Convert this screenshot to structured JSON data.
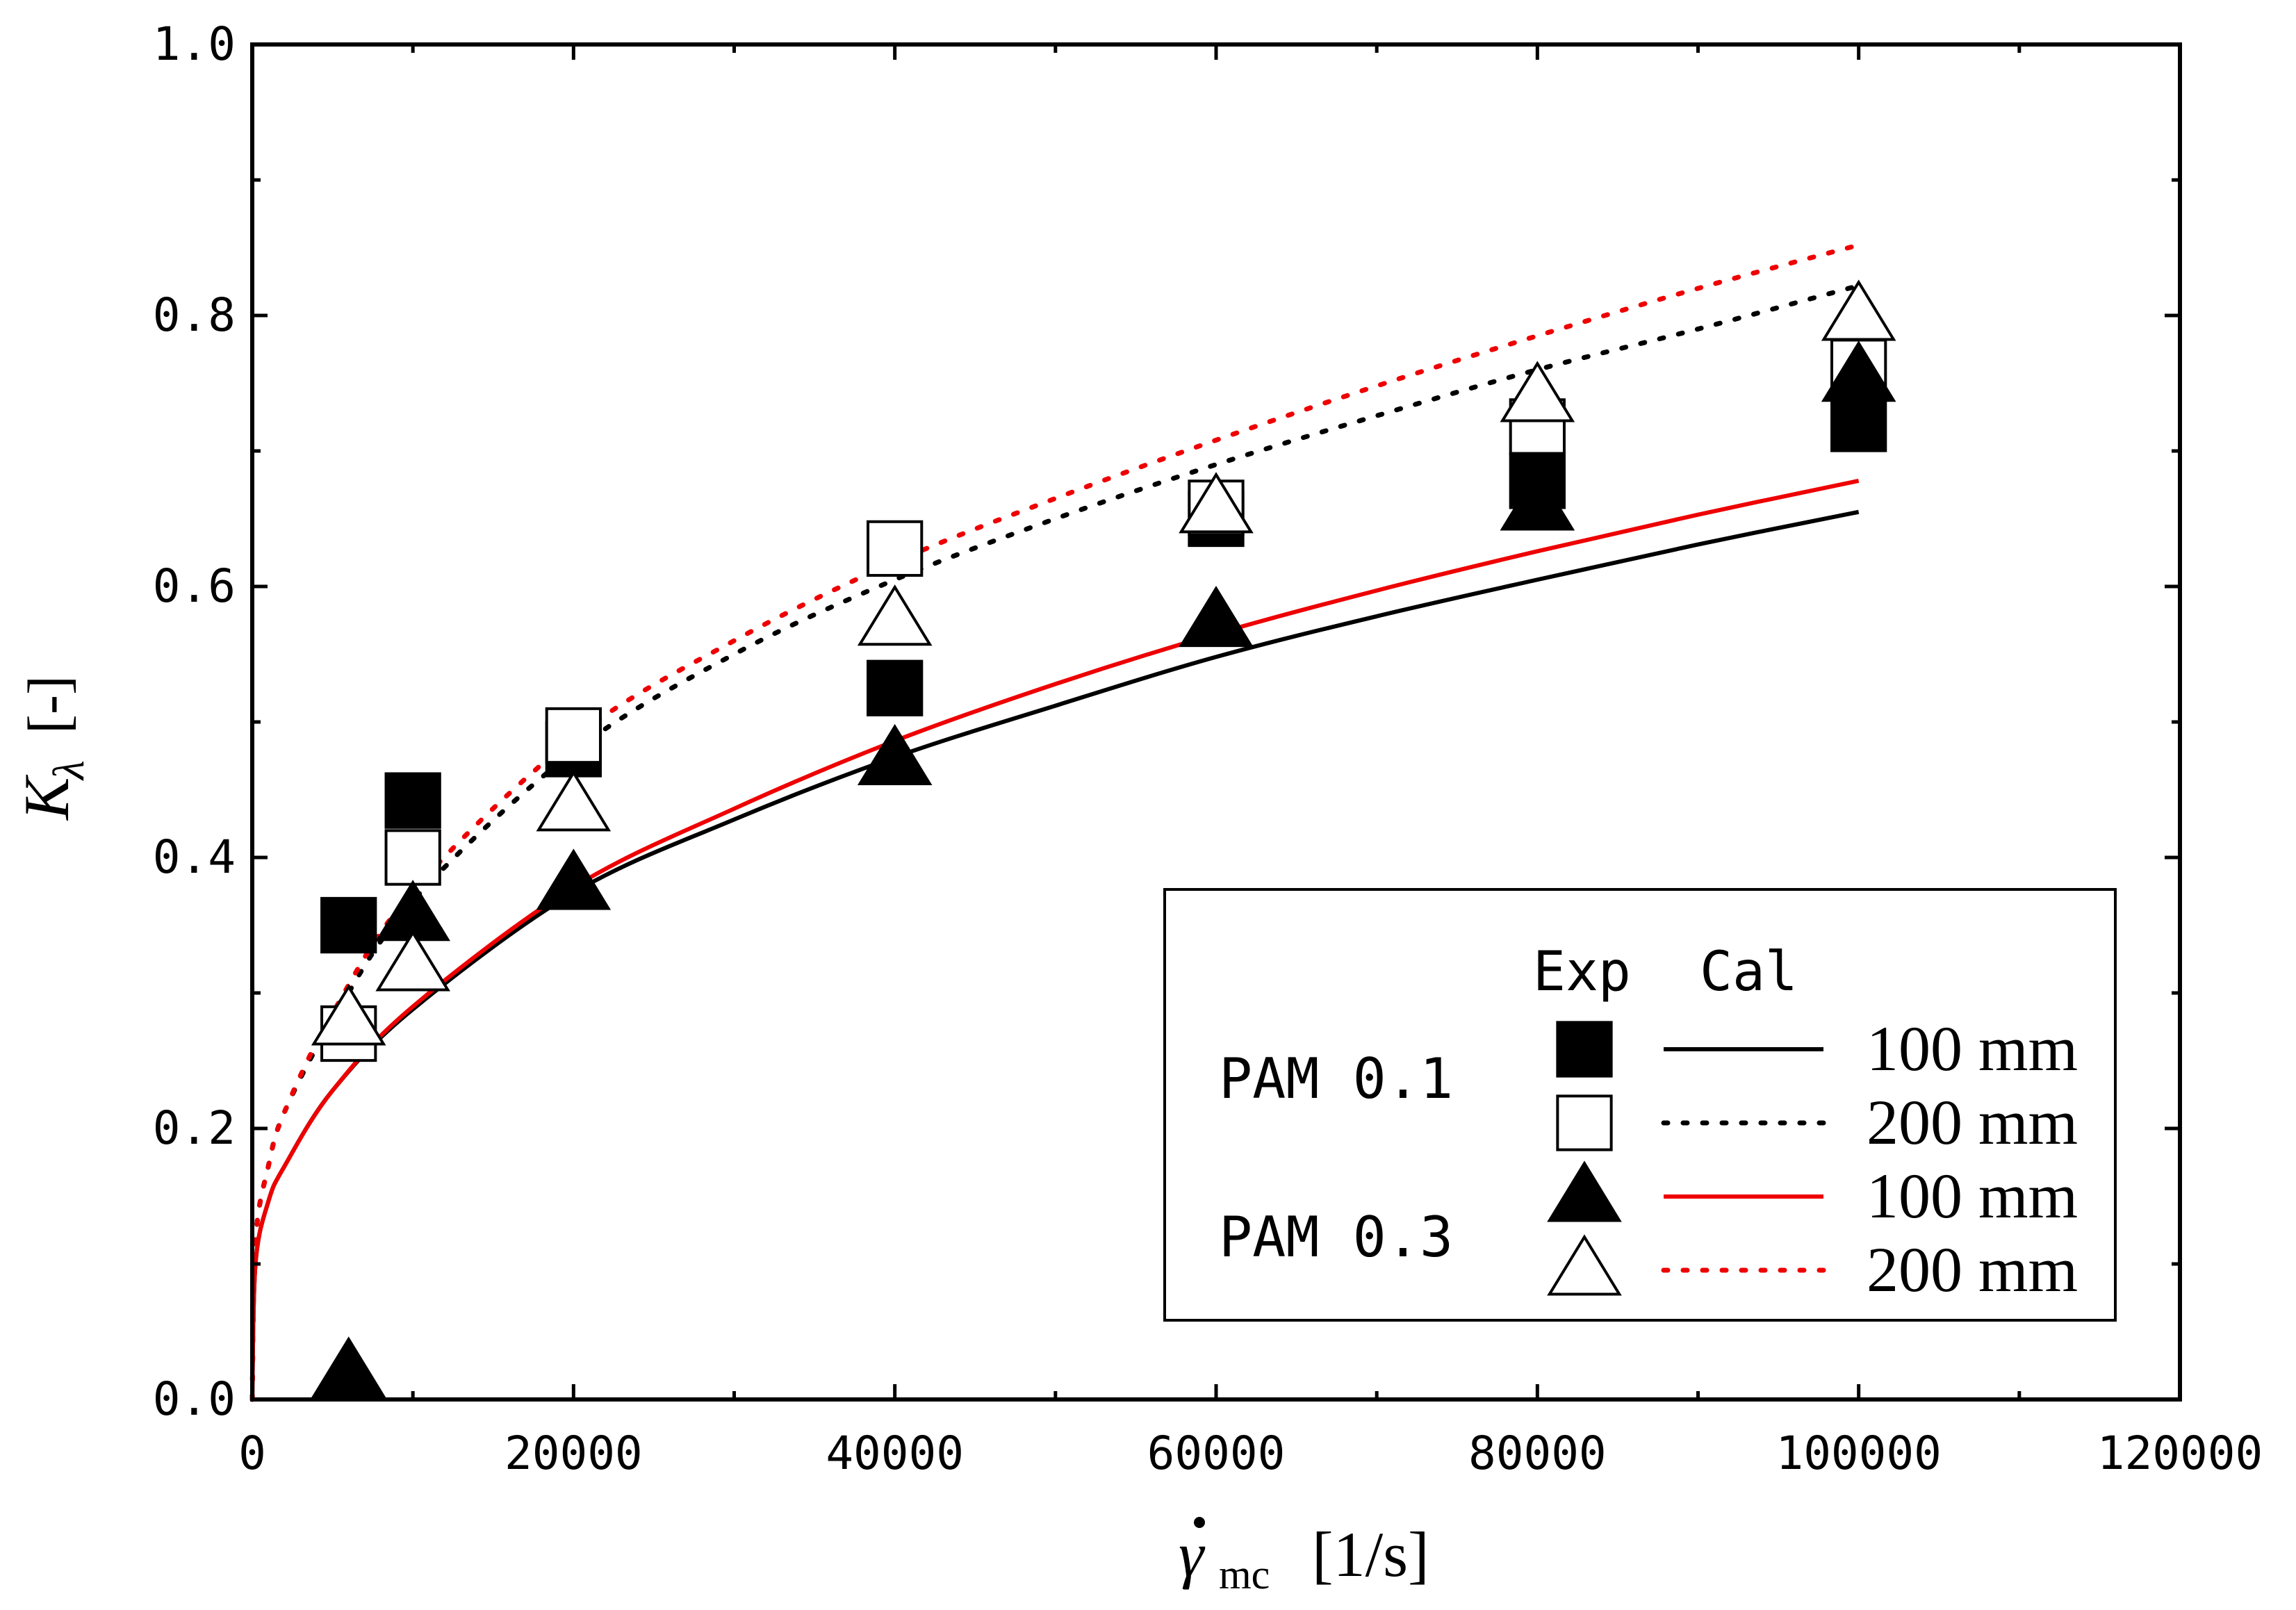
{
  "chart_data": {
    "type": "scatter",
    "xlabel": {
      "symbol": "γ",
      "subscript": "mc",
      "unit": "[1/s]"
    },
    "ylabel": {
      "symbol": "K",
      "subscript": "λ",
      "unit": "[-]"
    },
    "xlim": [
      0,
      120000
    ],
    "ylim": [
      0.0,
      1.0
    ],
    "x_ticks": [
      0,
      20000,
      40000,
      60000,
      80000,
      100000,
      120000
    ],
    "x_tick_labels": [
      "0",
      "20000",
      "40000",
      "60000",
      "80000",
      "100000",
      "120000"
    ],
    "y_ticks": [
      0.0,
      0.2,
      0.4,
      0.6,
      0.8,
      1.0
    ],
    "y_tick_labels": [
      "0.0",
      "0.2",
      "0.4",
      "0.6",
      "0.8",
      "1.0"
    ],
    "grid": false,
    "legend": {
      "placement": "bottom-right",
      "header_exp": "Exp",
      "header_cal": "Cal",
      "groups": [
        {
          "label": "PAM 0.1"
        },
        {
          "label": "PAM 0.3"
        }
      ],
      "rows": [
        {
          "marker": "filled-square",
          "line": "solid",
          "color": "#000000",
          "label": "100 mm"
        },
        {
          "marker": "open-square",
          "line": "dotted",
          "color": "#000000",
          "label": "200 mm"
        },
        {
          "marker": "filled-triangle",
          "line": "solid",
          "color": "#ee0000",
          "label": "100 mm"
        },
        {
          "marker": "open-triangle",
          "line": "dotted",
          "color": "#ee0000",
          "label": "200 mm"
        }
      ]
    },
    "experimental": [
      {
        "marker": "filled-square",
        "x": [
          6000,
          10000,
          20000,
          40000,
          60000,
          80000,
          100000
        ],
        "y": [
          0.35,
          0.442,
          0.48,
          0.525,
          0.65,
          0.678,
          0.72
        ]
      },
      {
        "marker": "open-square",
        "x": [
          6000,
          10000,
          20000,
          40000,
          60000,
          80000,
          100000
        ],
        "y": [
          0.27,
          0.4,
          0.49,
          0.628,
          0.658,
          0.718,
          0.762
        ]
      },
      {
        "marker": "filled-triangle",
        "x": [
          6000,
          10000,
          20000,
          40000,
          60000,
          80000,
          100000
        ],
        "y": [
          0.02,
          0.357,
          0.38,
          0.472,
          0.574,
          0.66,
          0.755
        ]
      },
      {
        "marker": "open-triangle",
        "x": [
          6000,
          10000,
          20000,
          40000,
          60000,
          80000,
          100000
        ],
        "y": [
          0.28,
          0.32,
          0.438,
          0.575,
          0.658,
          0.74,
          0.8
        ]
      }
    ],
    "calculated": [
      {
        "line": "solid",
        "color": "#000000",
        "x": [
          0,
          200,
          1000,
          2000,
          5000,
          10000,
          20000,
          30000,
          40000,
          50000,
          60000,
          70000,
          80000,
          90000,
          100000
        ],
        "y": [
          0,
          0.1,
          0.146,
          0.172,
          0.228,
          0.288,
          0.374,
          0.428,
          0.474,
          0.512,
          0.548,
          0.578,
          0.605,
          0.631,
          0.655
        ]
      },
      {
        "line": "dotted",
        "color": "#000000",
        "x": [
          0,
          200,
          1000,
          2000,
          5000,
          10000,
          20000,
          30000,
          40000,
          50000,
          60000,
          70000,
          80000,
          90000,
          100000
        ],
        "y": [
          0,
          0.117,
          0.172,
          0.212,
          0.28,
          0.368,
          0.478,
          0.55,
          0.605,
          0.65,
          0.69,
          0.726,
          0.76,
          0.79,
          0.822
        ]
      },
      {
        "line": "solid",
        "color": "#ee0000",
        "x": [
          0,
          200,
          1000,
          2000,
          5000,
          10000,
          20000,
          30000,
          40000,
          50000,
          60000,
          70000,
          80000,
          90000,
          100000
        ],
        "y": [
          0,
          0.1,
          0.146,
          0.172,
          0.228,
          0.29,
          0.378,
          0.436,
          0.486,
          0.528,
          0.565,
          0.597,
          0.626,
          0.653,
          0.678
        ]
      },
      {
        "line": "dotted",
        "color": "#ee0000",
        "x": [
          0,
          200,
          1000,
          2000,
          5000,
          10000,
          20000,
          30000,
          40000,
          50000,
          60000,
          70000,
          80000,
          90000,
          100000
        ],
        "y": [
          0,
          0.117,
          0.172,
          0.212,
          0.285,
          0.375,
          0.488,
          0.56,
          0.618,
          0.665,
          0.708,
          0.748,
          0.785,
          0.82,
          0.852
        ]
      }
    ]
  }
}
